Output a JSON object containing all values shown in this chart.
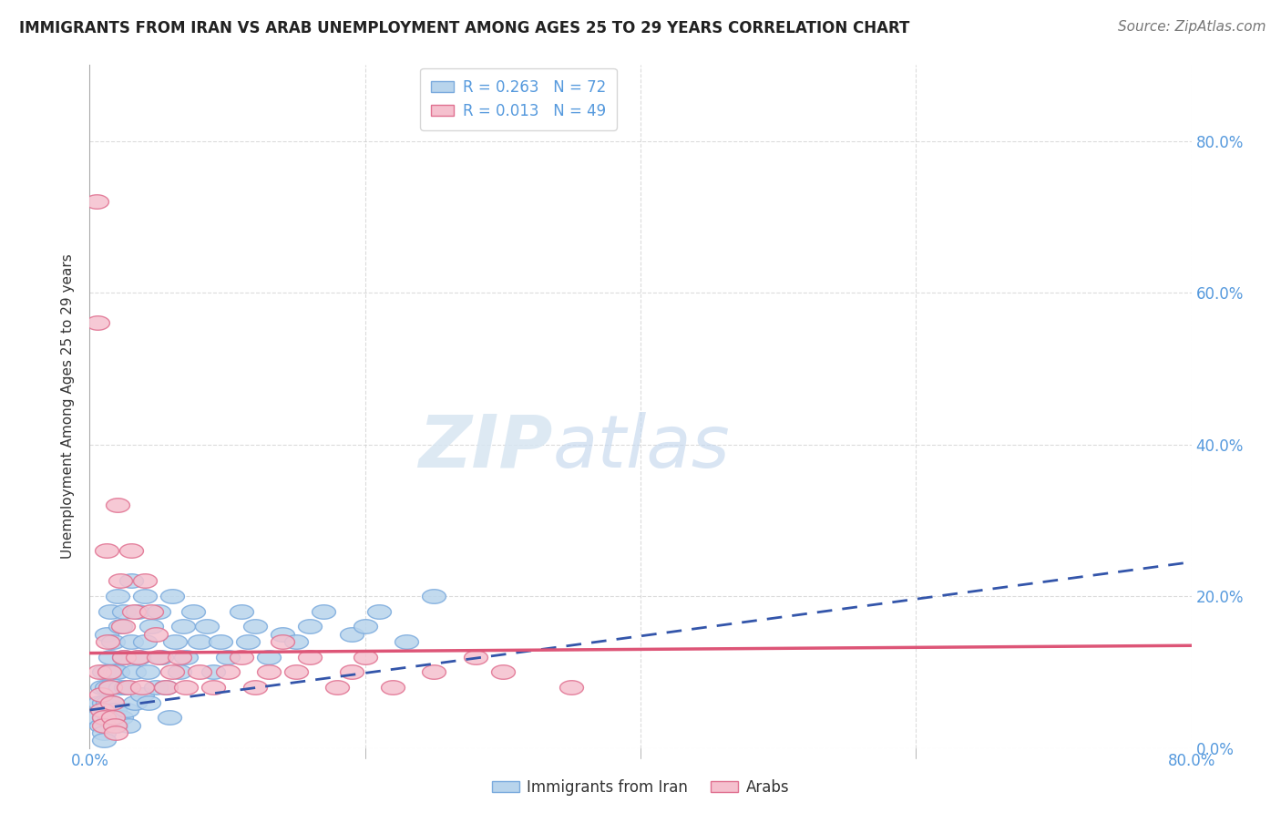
{
  "title": "IMMIGRANTS FROM IRAN VS ARAB UNEMPLOYMENT AMONG AGES 25 TO 29 YEARS CORRELATION CHART",
  "source": "Source: ZipAtlas.com",
  "ylabel": "Unemployment Among Ages 25 to 29 years",
  "xlim": [
    0.0,
    0.8
  ],
  "ylim": [
    0.0,
    0.9
  ],
  "yticks": [
    0.0,
    0.2,
    0.4,
    0.6,
    0.8
  ],
  "ytick_labels": [
    "0.0%",
    "20.0%",
    "40.0%",
    "60.0%",
    "80.0%"
  ],
  "xticks": [
    0.0,
    0.2,
    0.4,
    0.6,
    0.8
  ],
  "xtick_labels": [
    "0.0%",
    "",
    "",
    "",
    "80.0%"
  ],
  "grid_color": "#cccccc",
  "background_color": "#ffffff",
  "iran_color": "#b8d4ec",
  "iran_edge_color": "#7aaadd",
  "arab_color": "#f5c0ce",
  "arab_edge_color": "#e07090",
  "iran_R": 0.263,
  "iran_N": 72,
  "arab_R": 0.013,
  "arab_N": 49,
  "iran_line_color": "#3355aa",
  "arab_line_color": "#dd5577",
  "legend_iran_label": "Immigrants from Iran",
  "legend_arab_label": "Arabs",
  "iran_trend_x": [
    0.0,
    0.8
  ],
  "iran_trend_y": [
    0.05,
    0.245
  ],
  "arab_trend_x": [
    0.0,
    0.8
  ],
  "arab_trend_y": [
    0.125,
    0.135
  ],
  "iran_x": [
    0.005,
    0.007,
    0.008,
    0.009,
    0.01,
    0.01,
    0.01,
    0.01,
    0.01,
    0.012,
    0.012,
    0.013,
    0.014,
    0.015,
    0.015,
    0.015,
    0.016,
    0.017,
    0.018,
    0.018,
    0.019,
    0.02,
    0.02,
    0.022,
    0.022,
    0.023,
    0.025,
    0.025,
    0.026,
    0.027,
    0.028,
    0.03,
    0.03,
    0.032,
    0.033,
    0.035,
    0.036,
    0.038,
    0.04,
    0.04,
    0.042,
    0.043,
    0.045,
    0.048,
    0.05,
    0.052,
    0.055,
    0.058,
    0.06,
    0.062,
    0.065,
    0.068,
    0.07,
    0.075,
    0.08,
    0.085,
    0.09,
    0.095,
    0.1,
    0.11,
    0.115,
    0.12,
    0.13,
    0.14,
    0.15,
    0.16,
    0.17,
    0.19,
    0.2,
    0.21,
    0.23,
    0.25
  ],
  "iran_y": [
    0.04,
    0.06,
    0.03,
    0.08,
    0.1,
    0.06,
    0.04,
    0.02,
    0.01,
    0.15,
    0.08,
    0.06,
    0.04,
    0.18,
    0.12,
    0.08,
    0.06,
    0.14,
    0.1,
    0.05,
    0.03,
    0.2,
    0.1,
    0.16,
    0.08,
    0.04,
    0.18,
    0.12,
    0.08,
    0.05,
    0.03,
    0.22,
    0.14,
    0.1,
    0.06,
    0.18,
    0.12,
    0.07,
    0.2,
    0.14,
    0.1,
    0.06,
    0.16,
    0.08,
    0.18,
    0.12,
    0.08,
    0.04,
    0.2,
    0.14,
    0.1,
    0.16,
    0.12,
    0.18,
    0.14,
    0.16,
    0.1,
    0.14,
    0.12,
    0.18,
    0.14,
    0.16,
    0.12,
    0.15,
    0.14,
    0.16,
    0.18,
    0.15,
    0.16,
    0.18,
    0.14,
    0.2
  ],
  "arab_x": [
    0.005,
    0.006,
    0.007,
    0.008,
    0.009,
    0.01,
    0.01,
    0.012,
    0.013,
    0.014,
    0.015,
    0.016,
    0.017,
    0.018,
    0.019,
    0.02,
    0.022,
    0.024,
    0.025,
    0.028,
    0.03,
    0.032,
    0.035,
    0.038,
    0.04,
    0.045,
    0.048,
    0.05,
    0.055,
    0.06,
    0.065,
    0.07,
    0.08,
    0.09,
    0.1,
    0.11,
    0.12,
    0.13,
    0.14,
    0.15,
    0.16,
    0.18,
    0.19,
    0.2,
    0.22,
    0.25,
    0.28,
    0.3,
    0.35
  ],
  "arab_y": [
    0.72,
    0.56,
    0.1,
    0.07,
    0.05,
    0.04,
    0.03,
    0.26,
    0.14,
    0.1,
    0.08,
    0.06,
    0.04,
    0.03,
    0.02,
    0.32,
    0.22,
    0.16,
    0.12,
    0.08,
    0.26,
    0.18,
    0.12,
    0.08,
    0.22,
    0.18,
    0.15,
    0.12,
    0.08,
    0.1,
    0.12,
    0.08,
    0.1,
    0.08,
    0.1,
    0.12,
    0.08,
    0.1,
    0.14,
    0.1,
    0.12,
    0.08,
    0.1,
    0.12,
    0.08,
    0.1,
    0.12,
    0.1,
    0.08
  ]
}
